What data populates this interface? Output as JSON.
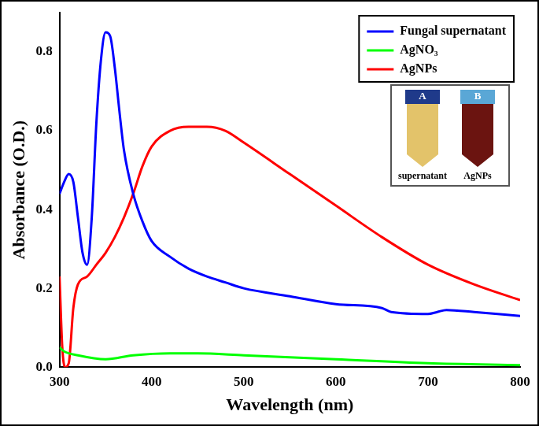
{
  "chart_data": {
    "type": "line",
    "x_label": "Wavelength (nm)",
    "y_label": "Absorbance (O.D.)",
    "xlim": [
      300,
      800
    ],
    "xticks": [
      300,
      400,
      500,
      600,
      700,
      800
    ],
    "ylim": [
      0,
      0.9
    ],
    "yticks": [
      {
        "value": 0,
        "label": "0.0"
      },
      0.2,
      0.4,
      0.6,
      0.8
    ],
    "grid": false,
    "legend": "upper right",
    "annotations": [
      "A",
      "B",
      "supernatant",
      "AgNPs"
    ],
    "series": [
      {
        "name": "Fungal supernatant",
        "color": "#0000ff",
        "x": [
          300,
          305,
          310,
          315,
          320,
          325,
          330,
          335,
          340,
          345,
          350,
          355,
          360,
          365,
          370,
          380,
          390,
          400,
          420,
          440,
          460,
          480,
          500,
          550,
          600,
          650,
          660,
          700,
          710,
          720,
          750,
          800
        ],
        "values": [
          0.44,
          0.47,
          0.49,
          0.47,
          0.38,
          0.29,
          0.26,
          0.38,
          0.62,
          0.78,
          0.85,
          0.84,
          0.76,
          0.65,
          0.55,
          0.44,
          0.37,
          0.32,
          0.28,
          0.25,
          0.23,
          0.215,
          0.2,
          0.18,
          0.16,
          0.15,
          0.14,
          0.135,
          0.14,
          0.145,
          0.14,
          0.13
        ]
      },
      {
        "name": "AgNO₃",
        "color": "#00ff00",
        "x": [
          300,
          305,
          320,
          350,
          380,
          420,
          450,
          500,
          600,
          700,
          800
        ],
        "values": [
          0.05,
          0.04,
          0.03,
          0.02,
          0.03,
          0.035,
          0.035,
          0.03,
          0.02,
          0.01,
          0.005
        ]
      },
      {
        "name": "AgNPs",
        "color": "#ff0000",
        "x": [
          300,
          303,
          306,
          310,
          315,
          320,
          330,
          340,
          350,
          360,
          370,
          380,
          390,
          400,
          420,
          440,
          460,
          480,
          500,
          550,
          600,
          650,
          700,
          750,
          800
        ],
        "values": [
          0.23,
          0.05,
          0.0,
          0.01,
          0.15,
          0.21,
          0.23,
          0.26,
          0.29,
          0.33,
          0.38,
          0.44,
          0.51,
          0.56,
          0.6,
          0.61,
          0.61,
          0.6,
          0.57,
          0.49,
          0.41,
          0.33,
          0.26,
          0.21,
          0.17
        ]
      }
    ]
  }
}
